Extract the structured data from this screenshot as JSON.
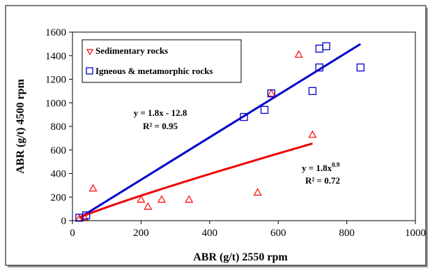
{
  "chart_data": {
    "type": "scatter",
    "title": "",
    "xlabel": "ABR (g/t) 2550 rpm",
    "ylabel": "ABR (g/t) 4500 rpm",
    "xlim": [
      0,
      1000
    ],
    "ylim": [
      0,
      1600
    ],
    "x_ticks": [
      "0",
      "200",
      "400",
      "600",
      "800",
      "1000"
    ],
    "y_ticks": [
      "0",
      "200",
      "400",
      "600",
      "800",
      "1000",
      "1200",
      "1400",
      "1600"
    ],
    "grid": false,
    "legend_position": "top-left",
    "series": [
      {
        "name": "Sedimentary rocks",
        "marker": "triangle",
        "color": "#ff0000",
        "points": [
          [
            20,
            20
          ],
          [
            35,
            30
          ],
          [
            60,
            275
          ],
          [
            200,
            180
          ],
          [
            220,
            120
          ],
          [
            260,
            180
          ],
          [
            340,
            180
          ],
          [
            540,
            240
          ],
          [
            580,
            1080
          ],
          [
            660,
            1410
          ],
          [
            700,
            730
          ]
        ]
      },
      {
        "name": "Igneous & metamorphic rocks",
        "marker": "square",
        "color": "#0000cc",
        "points": [
          [
            20,
            25
          ],
          [
            40,
            45
          ],
          [
            500,
            880
          ],
          [
            560,
            940
          ],
          [
            580,
            1080
          ],
          [
            700,
            1100
          ],
          [
            720,
            1300
          ],
          [
            720,
            1460
          ],
          [
            740,
            1480
          ],
          [
            840,
            1300
          ]
        ]
      }
    ],
    "trendlines": [
      {
        "series": "Igneous & metamorphic rocks",
        "color": "#0000cc",
        "type": "linear",
        "slope": 1.8,
        "intercept": -12.8,
        "x_range": [
          20,
          840
        ],
        "equation": "y = 1.8x - 12.8",
        "r2": "R² = 0.95"
      },
      {
        "series": "Sedimentary rocks",
        "color": "#ee0000",
        "type": "power",
        "coef": 1.8,
        "exponent": 0.9,
        "x_range": [
          20,
          700
        ],
        "equation_base": "y = 1.8x",
        "equation_exp": "0.9",
        "r2": "R² = 0.72"
      }
    ]
  }
}
